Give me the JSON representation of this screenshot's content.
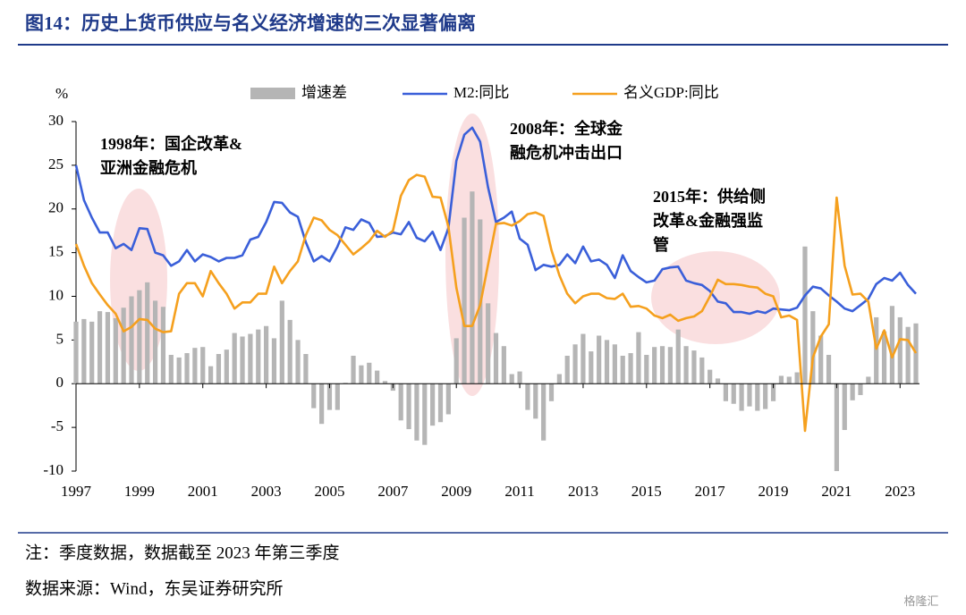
{
  "chart_data": {
    "type": "combo",
    "title": "图14：历史上货币供应与名义经济增速的三次显著偏离",
    "y_unit": "%",
    "categories": [
      "1997",
      null,
      null,
      null,
      null,
      null,
      null,
      null,
      "1999",
      null,
      null,
      null,
      null,
      null,
      null,
      null,
      "2001",
      null,
      null,
      null,
      null,
      null,
      null,
      null,
      "2003",
      null,
      null,
      null,
      null,
      null,
      null,
      null,
      "2005",
      null,
      null,
      null,
      null,
      null,
      null,
      null,
      "2007",
      null,
      null,
      null,
      null,
      null,
      null,
      null,
      "2009",
      null,
      null,
      null,
      null,
      null,
      null,
      null,
      "2011",
      null,
      null,
      null,
      null,
      null,
      null,
      null,
      "2013",
      null,
      null,
      null,
      null,
      null,
      null,
      null,
      "2015",
      null,
      null,
      null,
      null,
      null,
      null,
      null,
      "2017",
      null,
      null,
      null,
      null,
      null,
      null,
      null,
      "2019",
      null,
      null,
      null,
      null,
      null,
      null,
      null,
      "2021",
      null,
      null,
      null,
      null,
      null,
      null,
      null,
      "2023",
      null,
      null
    ],
    "series": [
      {
        "name": "增速差",
        "type": "bar",
        "color": "#b5b5b5",
        "values": [
          7.1,
          7.4,
          7.1,
          8.3,
          8.2,
          7.5,
          8.7,
          10,
          10.7,
          11.6,
          9.5,
          8.8,
          3.3,
          3,
          3.5,
          4.1,
          4.2,
          2,
          3.4,
          3.9,
          5.8,
          5.4,
          5.7,
          6.2,
          6.6,
          5.2,
          9.5,
          7.3,
          5.0,
          3.4,
          -2.8,
          -4.6,
          -3.0,
          -3.0,
          0.1,
          3.2,
          2.1,
          2.4,
          1.5,
          0.3,
          -0.8,
          -4.2,
          -5.2,
          -6.5,
          -7.0,
          -4.8,
          -4.4,
          -3.5,
          5.2,
          19.0,
          22.0,
          18.8,
          9.2,
          5.8,
          4.3,
          1.1,
          1.4,
          -3,
          -4,
          -6.5,
          -2,
          1.1,
          3.2,
          4.5,
          5.7,
          3.7,
          5.5,
          5.0,
          4.5,
          3.2,
          3.5,
          5.9,
          3.3,
          4.2,
          4.3,
          4.2,
          6.2,
          4.3,
          3.8,
          3.0,
          1.6,
          0.6,
          -2,
          -2.3,
          -3.1,
          -2.6,
          -3.1,
          -2.9,
          -2,
          0.9,
          0.8,
          1.3,
          15.7,
          8.3,
          5.5,
          3.3,
          -10,
          -5.3,
          -1.9,
          -1.3,
          0.8,
          7.6,
          6,
          8.9,
          7.6,
          6.5,
          6.9
        ]
      },
      {
        "name": "M2:同比",
        "type": "line",
        "color": "#3a5fd9",
        "values": [
          25,
          21,
          19,
          17.3,
          17.3,
          15.5,
          16,
          15.3,
          17.8,
          17.7,
          15,
          14.7,
          13.5,
          14,
          15.3,
          14,
          14.8,
          14.5,
          14,
          14.4,
          14.4,
          14.7,
          16.5,
          16.8,
          18.5,
          20.8,
          20.7,
          19.6,
          19.1,
          16.2,
          14,
          14.6,
          14,
          15.7,
          17.9,
          17.6,
          18.8,
          18.4,
          16.8,
          16.9,
          17.3,
          17.1,
          18.5,
          16.7,
          16.3,
          17.4,
          15.3,
          17.8,
          25.5,
          28.5,
          29.3,
          27.7,
          22.5,
          18.5,
          19,
          19.7,
          16.6,
          15.9,
          13,
          13.6,
          13.4,
          13.6,
          14.8,
          13.8,
          15.7,
          14,
          14.2,
          13.6,
          12.1,
          14.7,
          12.9,
          12.2,
          11.6,
          11.8,
          13.1,
          13.3,
          13.4,
          11.8,
          11.5,
          11.3,
          10.6,
          9.4,
          9.2,
          8.2,
          8.2,
          8,
          8.3,
          8.1,
          8.6,
          8.5,
          8.4,
          8.7,
          10.1,
          11.1,
          10.9,
          10.1,
          9.4,
          8.6,
          8.3,
          9,
          9.7,
          11.4,
          12.1,
          11.8,
          12.7,
          11.3,
          10.3
        ]
      },
      {
        "name": "名义GDP:同比",
        "type": "line",
        "color": "#f5a01e",
        "values": [
          16,
          13.5,
          11.5,
          10.2,
          9,
          8,
          6,
          6.5,
          7.4,
          7.3,
          6.3,
          5.9,
          6,
          10.3,
          11.5,
          11.5,
          10,
          12.9,
          11.5,
          10.3,
          8.6,
          9.3,
          9.3,
          10.3,
          10.3,
          13.4,
          11.5,
          12.9,
          14,
          17,
          19,
          18.7,
          17.6,
          17,
          15.9,
          14.8,
          15.5,
          16.3,
          17.5,
          16.8,
          17.5,
          21.5,
          23.3,
          23.9,
          23.7,
          21.4,
          21.3,
          18,
          11,
          6.6,
          6.6,
          9,
          13.6,
          18.3,
          18.4,
          18.1,
          18.6,
          19.4,
          19.6,
          19.2,
          15.3,
          12.4,
          10.3,
          9.2,
          10,
          10.3,
          10.3,
          9.8,
          9.7,
          10.3,
          8.8,
          8.9,
          8.6,
          7.8,
          7.5,
          7.9,
          7.2,
          7.5,
          7.7,
          8.3,
          10,
          11.9,
          11.4,
          11.4,
          11.3,
          11.1,
          11,
          10.3,
          10,
          7.6,
          7.8,
          7.3,
          -5.4,
          3,
          5.4,
          6.8,
          21.3,
          13.5,
          10.2,
          10.3,
          9.4,
          4,
          6.1,
          3,
          5.1,
          5,
          3.5
        ]
      }
    ],
    "ylim": [
      -10,
      30
    ],
    "yticks": [
      -10,
      -5,
      0,
      5,
      10,
      15,
      20,
      25,
      30
    ],
    "legend": "top",
    "annotations": [
      [
        "1998年：国企改革&",
        "亚洲金融危机"
      ],
      [
        "2008年：全球金",
        "融危机冲击出口"
      ],
      [
        "2015年：供给侧",
        "改革&金融强监",
        "管"
      ]
    ],
    "notes": [
      "注：季度数据，数据截至 2023 年第三季度",
      "数据来源：Wind，东吴证券研究所"
    ],
    "watermark": "格隆汇"
  }
}
